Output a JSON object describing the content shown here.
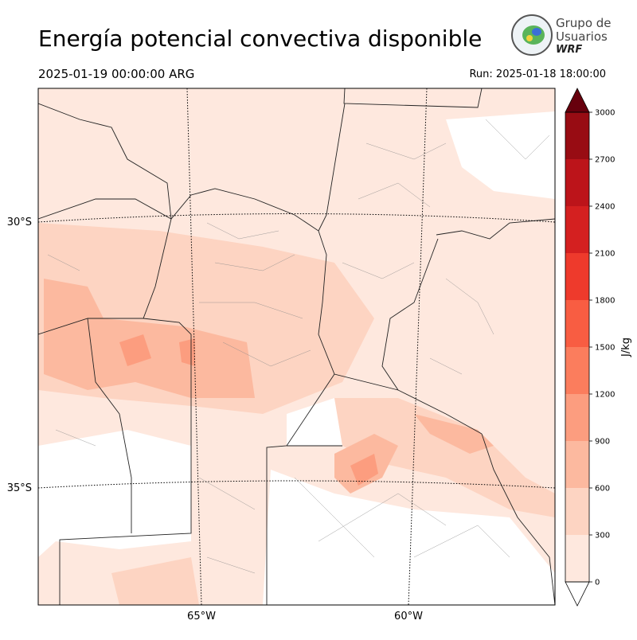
{
  "header": {
    "title": "Energía potencial convectiva disponible",
    "valid": "2025-01-19 00:00:00 ARG",
    "run": "Run: 2025-01-18 18:00:00"
  },
  "logo": {
    "line1": "Grupo de",
    "line2": "Usuarios",
    "line3": "WRF"
  },
  "map": {
    "lat_labels": [
      "30°S",
      "35°S"
    ],
    "lon_labels": [
      "65°W",
      "60°W"
    ]
  },
  "colorbar": {
    "label": "J/kg",
    "ticks": [
      0,
      300,
      600,
      900,
      1200,
      1500,
      1800,
      2100,
      2400,
      2700,
      3000
    ],
    "colors": [
      "#fee8de",
      "#fdd4c2",
      "#fcb99f",
      "#fc9d7f",
      "#fb7d5d",
      "#f85d42",
      "#ee3a2c",
      "#d42020",
      "#bc141a",
      "#980c13"
    ],
    "over_color": "#67000d",
    "under_color": "#ffffff"
  }
}
